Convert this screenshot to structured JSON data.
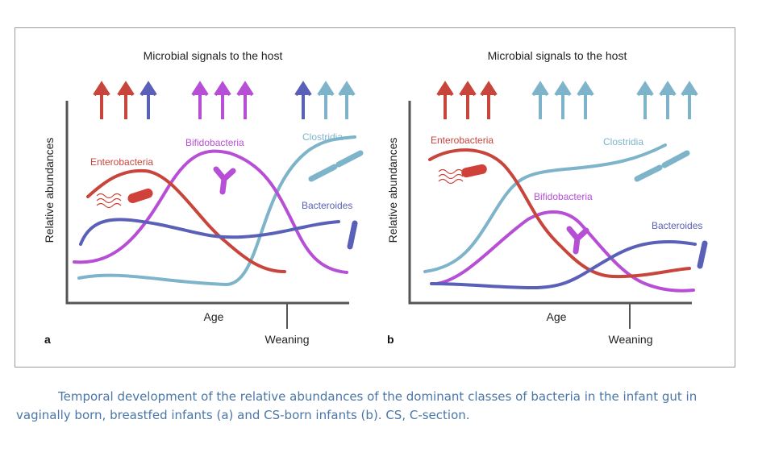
{
  "figure": {
    "panels": [
      {
        "letter": "a",
        "heading": "Microbial signals to the host",
        "y_label": "Relative abundances",
        "x_label": "Age",
        "marker_label": "Weaning",
        "series_labels": {
          "enterobacteria": "Enterobacteria",
          "bifidobacteria": "Bifidobacteria",
          "clostridia": "Clostridia",
          "bacteroides": "Bacteroides"
        }
      },
      {
        "letter": "b",
        "heading": "Microbial signals to the host",
        "y_label": "Relative abundances",
        "x_label": "Age",
        "marker_label": "Weaning",
        "series_labels": {
          "enterobacteria": "Enterobacteria",
          "bifidobacteria": "Bifidobacteria",
          "clostridia": "Clostridia",
          "bacteroides": "Bacteroides"
        }
      }
    ],
    "colors": {
      "enterobacteria": "#c8453c",
      "bifidobacteria": "#b74fd6",
      "clostridia": "#7db4c9",
      "bacteroides": "#5a5fb8"
    },
    "icons": [
      "up-arrow-icon",
      "rod-bacterium-icon",
      "y-shaped-bacterium-icon",
      "chain-bacterium-icon",
      "bacteroides-rod-icon"
    ]
  },
  "caption": {
    "text_before_a": "Temporal development of the relative abundances of the dominant classes of bacteria in the infant gut in vaginally born, breastfed infants (",
    "a": "a",
    "text_between": ") and CS-born infants (",
    "b": "b",
    "text_after": "). CS, C-section."
  }
}
